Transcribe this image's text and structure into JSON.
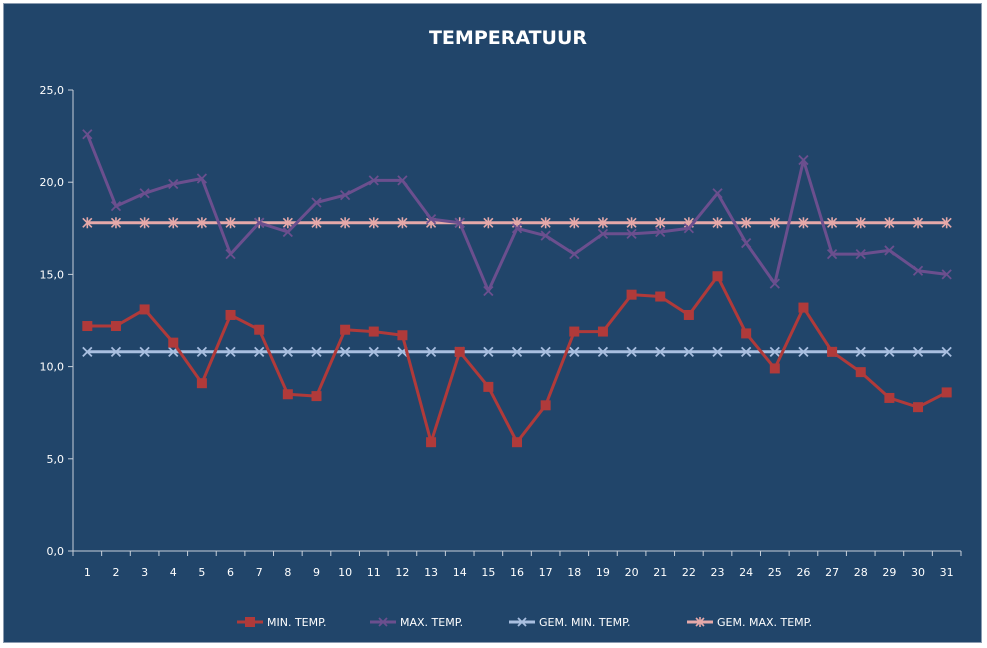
{
  "colors": {
    "background": "#21456a",
    "axis": "#c8d0da",
    "min_temp": "#b03a3a",
    "max_temp": "#6b4f8e",
    "avg_min": "#a9bfe0",
    "avg_max": "#e6a9a9"
  },
  "chart_data": {
    "type": "line",
    "title": "TEMPERATUUR",
    "xlabel": "",
    "ylabel": "",
    "ylim": [
      0,
      25
    ],
    "yticks": [
      "0,0",
      "5,0",
      "10,0",
      "15,0",
      "20,0",
      "25,0"
    ],
    "ytick_values": [
      0,
      5,
      10,
      15,
      20,
      25
    ],
    "categories": [
      "1",
      "2",
      "3",
      "4",
      "5",
      "6",
      "7",
      "8",
      "9",
      "10",
      "11",
      "12",
      "13",
      "14",
      "15",
      "16",
      "17",
      "18",
      "19",
      "20",
      "21",
      "22",
      "23",
      "24",
      "25",
      "26",
      "27",
      "28",
      "29",
      "30",
      "31"
    ],
    "grid": false,
    "legend_position": "bottom",
    "series": [
      {
        "name": "MIN. TEMP.",
        "marker": "square",
        "color_key": "min_temp",
        "values": [
          12.2,
          12.2,
          13.1,
          11.3,
          9.1,
          12.8,
          12.0,
          8.5,
          8.4,
          12.0,
          11.9,
          11.7,
          5.9,
          10.8,
          8.9,
          5.9,
          7.9,
          11.9,
          11.9,
          13.9,
          13.8,
          12.8,
          14.9,
          11.8,
          9.9,
          13.2,
          10.8,
          9.7,
          8.3,
          7.8,
          8.6
        ]
      },
      {
        "name": "MAX. TEMP.",
        "marker": "x",
        "color_key": "max_temp",
        "values": [
          22.6,
          18.7,
          19.4,
          19.9,
          20.2,
          16.1,
          17.8,
          17.3,
          18.9,
          19.3,
          20.1,
          20.1,
          18.0,
          17.8,
          14.1,
          17.5,
          17.1,
          16.1,
          17.2,
          17.2,
          17.3,
          17.5,
          19.4,
          16.7,
          14.5,
          21.2,
          16.1,
          16.1,
          16.3,
          15.2,
          15.0
        ]
      },
      {
        "name": "GEM. MIN. TEMP.",
        "marker": "x",
        "color_key": "avg_min",
        "values": [
          10.8,
          10.8,
          10.8,
          10.8,
          10.8,
          10.8,
          10.8,
          10.8,
          10.8,
          10.8,
          10.8,
          10.8,
          10.8,
          10.8,
          10.8,
          10.8,
          10.8,
          10.8,
          10.8,
          10.8,
          10.8,
          10.8,
          10.8,
          10.8,
          10.8,
          10.8,
          10.8,
          10.8,
          10.8,
          10.8,
          10.8
        ]
      },
      {
        "name": "GEM. MAX. TEMP.",
        "marker": "star",
        "color_key": "avg_max",
        "values": [
          17.8,
          17.8,
          17.8,
          17.8,
          17.8,
          17.8,
          17.8,
          17.8,
          17.8,
          17.8,
          17.8,
          17.8,
          17.8,
          17.8,
          17.8,
          17.8,
          17.8,
          17.8,
          17.8,
          17.8,
          17.8,
          17.8,
          17.8,
          17.8,
          17.8,
          17.8,
          17.8,
          17.8,
          17.8,
          17.8,
          17.8
        ]
      }
    ]
  }
}
